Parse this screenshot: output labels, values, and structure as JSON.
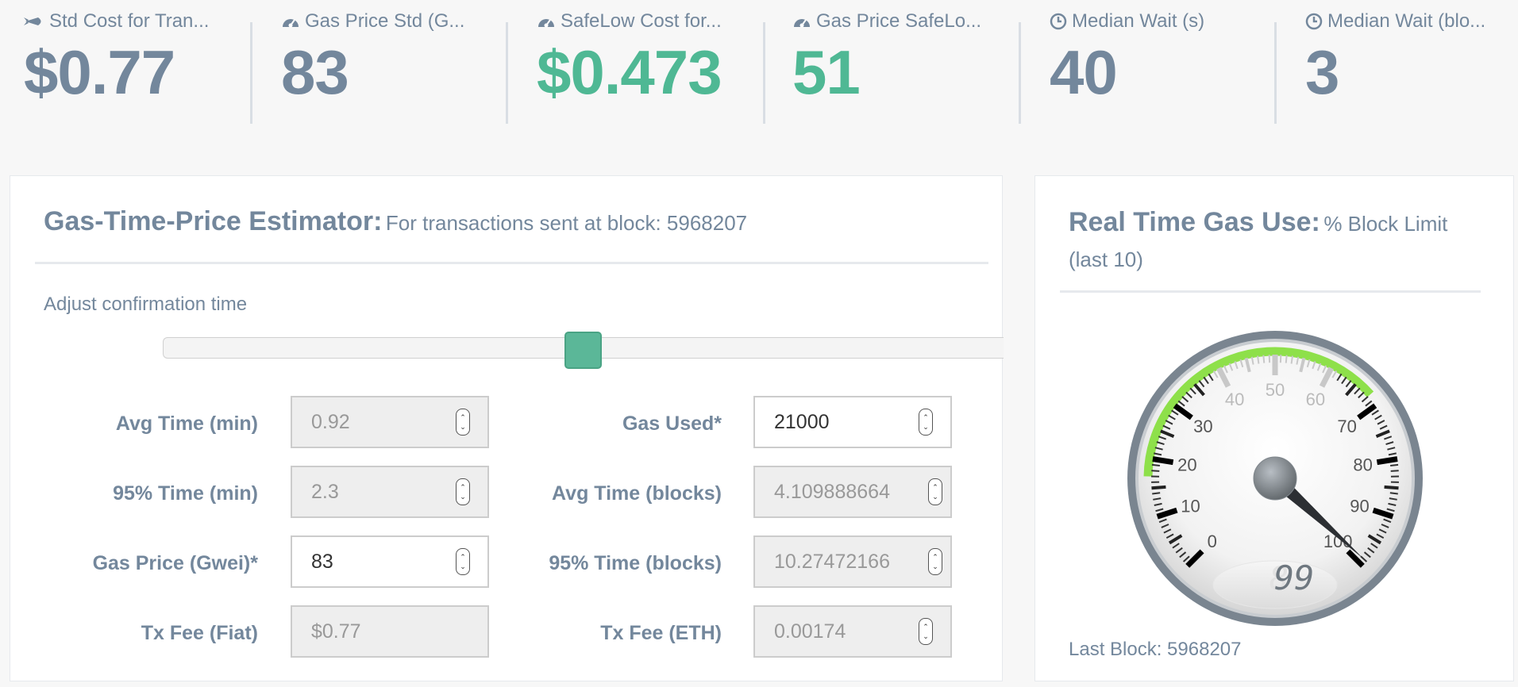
{
  "stats": [
    {
      "icon": "rocket-icon",
      "label": "Std Cost for Tran...",
      "value": "$0.77",
      "color": "#73879c"
    },
    {
      "icon": "dashboard-icon",
      "label": "Gas Price Std (G...",
      "value": "83",
      "color": "#73879c"
    },
    {
      "icon": "dashboard-icon",
      "label": "SafeLow Cost for...",
      "value": "$0.473",
      "color": "#4fb894"
    },
    {
      "icon": "dashboard-icon",
      "label": "Gas Price SafeLo...",
      "value": "51",
      "color": "#4fb894"
    },
    {
      "icon": "clock-icon",
      "label": "Median Wait (s)",
      "value": "40",
      "color": "#73879c"
    },
    {
      "icon": "clock-icon",
      "label": "Median Wait (blo...",
      "value": "3",
      "color": "#73879c"
    }
  ],
  "estimator": {
    "title": "Gas-Time-Price Estimator:",
    "subtitle": "For transactions sent at block: 5968207",
    "adjust_label": "Adjust confirmation time",
    "slider_value": 0.5,
    "fields_left": [
      {
        "label": "Avg Time (min)",
        "value": "0.92",
        "editable": false,
        "spinner": true
      },
      {
        "label": "95% Time (min)",
        "value": "2.3",
        "editable": false,
        "spinner": true
      },
      {
        "label": "Gas Price (Gwei)*",
        "value": "83",
        "editable": true,
        "spinner": true
      },
      {
        "label": "Tx Fee (Fiat)",
        "value": "$0.77",
        "editable": false,
        "spinner": false
      }
    ],
    "fields_right": [
      {
        "label": "Gas Used*",
        "value": "21000",
        "editable": true,
        "spinner": true
      },
      {
        "label": "Avg Time (blocks)",
        "value": "4.109888664",
        "editable": false,
        "spinner": true
      },
      {
        "label": "95% Time (blocks)",
        "value": "10.27472166",
        "editable": false,
        "spinner": true
      },
      {
        "label": "Tx Fee (ETH)",
        "value": "0.00174",
        "editable": false,
        "spinner": true
      }
    ]
  },
  "gas_use": {
    "title": "Real Time Gas Use:",
    "subtitle": "% Block Limit (last 10)",
    "gauge": {
      "ticks": [
        "0",
        "10",
        "20",
        "30",
        "40",
        "50",
        "60",
        "70",
        "80",
        "90",
        "100"
      ],
      "value": 99,
      "display": "99",
      "band_from": 17,
      "band_to": 68,
      "band_color": "#8ee04a"
    },
    "last_block": "Last Block: 5968207"
  }
}
